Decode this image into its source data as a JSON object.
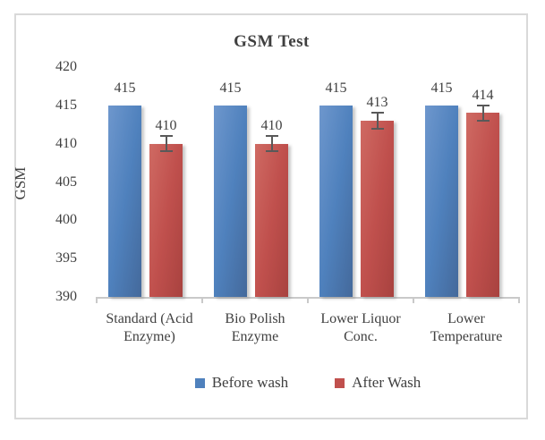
{
  "chart": {
    "title": "GSM Test",
    "y_axis_title": "GSM"
  },
  "chart_data": {
    "type": "bar",
    "title": "GSM Test",
    "xlabel": "",
    "ylabel": "GSM",
    "categories": [
      "Standard (Acid Enzyme)",
      "Bio Polish Enzyme",
      "Lower Liquor Conc.",
      "Lower Temperature"
    ],
    "category_label_lines": [
      [
        "Standard (Acid",
        "Enzyme)"
      ],
      [
        "Bio Polish",
        "Enzyme"
      ],
      [
        "Lower Liquor",
        "Conc."
      ],
      [
        "Lower",
        "Temperature"
      ]
    ],
    "series": [
      {
        "name": "Before wash",
        "color": "#4F81BD",
        "values": [
          415,
          415,
          415,
          415
        ],
        "data_labels": [
          "415",
          "415",
          "415",
          "415"
        ],
        "error_bar": 0
      },
      {
        "name": "After Wash",
        "color": "#C0504D",
        "values": [
          410,
          410,
          413,
          414
        ],
        "data_labels": [
          "410",
          "410",
          "413",
          "414"
        ],
        "error_bar": 1
      }
    ],
    "ylim": [
      390,
      420
    ],
    "yticks": [
      390,
      395,
      400,
      405,
      410,
      415,
      420
    ],
    "grid": false,
    "legend_position": "bottom",
    "bar_shadow": true
  },
  "colors": {
    "before_wash": "#4F81BD",
    "after_wash": "#C0504D",
    "text": "#404040",
    "title_text": "#3F3F3F",
    "axis_line": "#C9C9C9",
    "frame_border": "#D9D9D9",
    "error_bar": "#595959",
    "background": "#FFFFFF"
  }
}
